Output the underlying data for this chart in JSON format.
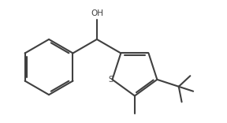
{
  "background_color": "#ffffff",
  "line_color": "#404040",
  "line_width": 1.5,
  "fig_width": 2.88,
  "fig_height": 1.56,
  "dpi": 100,
  "font_size": 7.5
}
